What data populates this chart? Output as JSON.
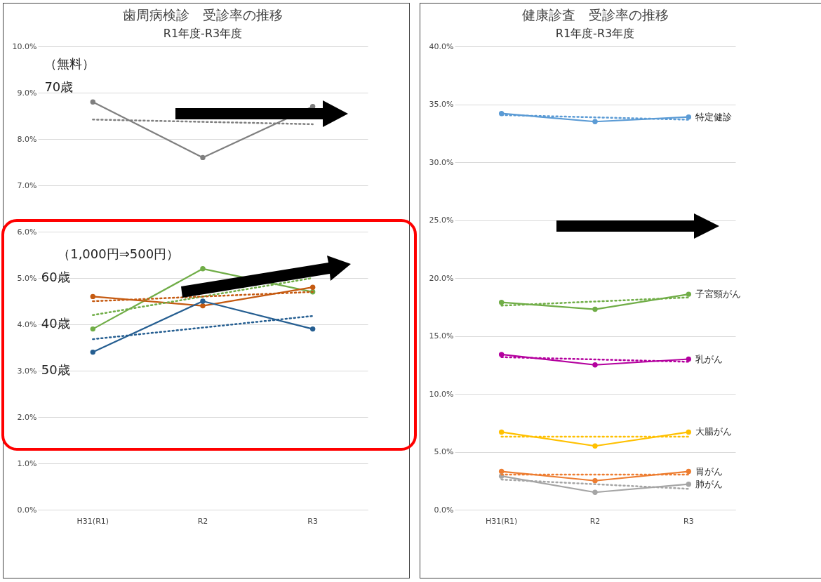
{
  "chart_data": [
    {
      "type": "line",
      "title": "歯周病検診　受診率の推移",
      "subtitle": "R1年度-R3年度",
      "categories": [
        "H31(R1)",
        "R2",
        "R3"
      ],
      "ylim": [
        0,
        10
      ],
      "yticks": [
        {
          "value": 0,
          "label": "0.0%"
        },
        {
          "value": 1,
          "label": "1.0%"
        },
        {
          "value": 2,
          "label": "2.0%"
        },
        {
          "value": 3,
          "label": "3.0%"
        },
        {
          "value": 4,
          "label": "4.0%"
        },
        {
          "value": 5,
          "label": "5.0%"
        },
        {
          "value": 6,
          "label": "6.0%"
        },
        {
          "value": 7,
          "label": "7.0%"
        },
        {
          "value": 8,
          "label": "8.0%"
        },
        {
          "value": 9,
          "label": "9.0%"
        },
        {
          "value": 10,
          "label": "10.0%"
        }
      ],
      "grid": "y",
      "marker": "circle",
      "line_style": "solid",
      "annotations": [
        "（無料）",
        "70歳",
        "（1,000円⇒500円）",
        "60歳",
        "40歳",
        "50歳"
      ],
      "series": [
        {
          "color": "#7f7f7f",
          "values": [
            8.8,
            7.6,
            8.7
          ]
        },
        {
          "color": "#70ad47",
          "values": [
            3.9,
            5.2,
            4.7
          ]
        },
        {
          "color": "#c55a11",
          "values": [
            4.6,
            4.4,
            4.8
          ]
        },
        {
          "color": "#255e91",
          "values": [
            3.4,
            4.5,
            3.9
          ]
        },
        {
          "color": "#7f7f7f",
          "values": [
            8.42,
            8.37,
            8.32
          ],
          "marker": "none",
          "line_style": "dotted"
        },
        {
          "color": "#70ad47",
          "values": [
            4.2,
            4.6,
            5.0
          ],
          "marker": "none",
          "line_style": "dotted"
        },
        {
          "color": "#c55a11",
          "values": [
            4.5,
            4.6,
            4.7
          ],
          "marker": "none",
          "line_style": "dotted"
        },
        {
          "color": "#255e91",
          "values": [
            3.68,
            3.93,
            4.18
          ],
          "marker": "none",
          "line_style": "dotted"
        }
      ]
    },
    {
      "type": "line",
      "title": "健康診査　受診率の推移",
      "subtitle": "R1年度-R3年度",
      "categories": [
        "H31(R1)",
        "R2",
        "R3"
      ],
      "ylim": [
        0,
        40
      ],
      "yticks": [
        {
          "value": 0,
          "label": "0.0%"
        },
        {
          "value": 5,
          "label": "5.0%"
        },
        {
          "value": 10,
          "label": "10.0%"
        },
        {
          "value": 15,
          "label": "15.0%"
        },
        {
          "value": 20,
          "label": "20.0%"
        },
        {
          "value": 25,
          "label": "25.0%"
        },
        {
          "value": 30,
          "label": "30.0%"
        },
        {
          "value": 35,
          "label": "35.0%"
        },
        {
          "value": 40,
          "label": "40.0%"
        }
      ],
      "grid": "y",
      "marker": "circle",
      "line_style": "solid",
      "series": [
        {
          "name": "特定健診",
          "color": "#5b9bd5",
          "values": [
            34.2,
            33.5,
            33.9
          ]
        },
        {
          "name": "子宮頸がん",
          "color": "#70ad47",
          "values": [
            17.9,
            17.3,
            18.6
          ]
        },
        {
          "name": "乳がん",
          "color": "#b4009e",
          "values": [
            13.4,
            12.5,
            13.0
          ]
        },
        {
          "name": "大腸がん",
          "color": "#ffc000",
          "values": [
            6.7,
            5.5,
            6.7
          ]
        },
        {
          "name": "胃がん",
          "color": "#ed7d31",
          "values": [
            3.3,
            2.5,
            3.3
          ]
        },
        {
          "name": "肺がん",
          "color": "#a5a5a5",
          "values": [
            2.9,
            1.5,
            2.2
          ]
        },
        {
          "color": "#5b9bd5",
          "values": [
            34.07,
            33.87,
            33.67
          ],
          "marker": "none",
          "line_style": "dotted"
        },
        {
          "color": "#70ad47",
          "values": [
            17.62,
            17.97,
            18.32
          ],
          "marker": "none",
          "line_style": "dotted"
        },
        {
          "color": "#b4009e",
          "values": [
            13.17,
            12.97,
            12.77
          ],
          "marker": "none",
          "line_style": "dotted"
        },
        {
          "color": "#ffc000",
          "values": [
            6.3,
            6.3,
            6.3
          ],
          "marker": "none",
          "line_style": "dotted"
        },
        {
          "color": "#ed7d31",
          "values": [
            3.03,
            3.03,
            3.03
          ],
          "marker": "none",
          "line_style": "dotted"
        },
        {
          "color": "#a5a5a5",
          "values": [
            2.6,
            2.2,
            1.8
          ],
          "marker": "none",
          "line_style": "dotted"
        }
      ]
    }
  ]
}
